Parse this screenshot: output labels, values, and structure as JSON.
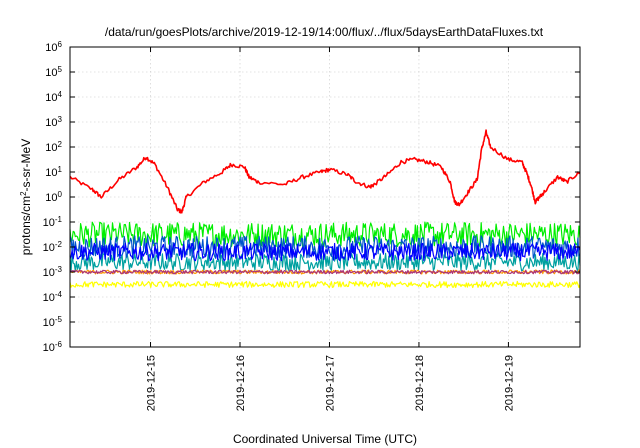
{
  "chart_data": {
    "type": "line",
    "title": "/data/run/goesPlots/archive/2019-12-19/14:00/flux/../flux/5daysEarthDataFluxes.txt",
    "xlabel": "Coordinated Universal Time (UTC)",
    "ylabel": {
      "base": "protons/cm",
      "sup": "2",
      "rest": "-s-sr-MeV"
    },
    "yscale": "log",
    "ylim_exp": [
      -6,
      6
    ],
    "y_ticks": [
      {
        "base": "10",
        "exp": "6"
      },
      {
        "base": "10",
        "exp": "5"
      },
      {
        "base": "10",
        "exp": "4"
      },
      {
        "base": "10",
        "exp": "3"
      },
      {
        "base": "10",
        "exp": "2"
      },
      {
        "base": "10",
        "exp": "1"
      },
      {
        "base": "10",
        "exp": "0"
      },
      {
        "base": "10",
        "exp": "-1"
      },
      {
        "base": "10",
        "exp": "-2"
      },
      {
        "base": "10",
        "exp": "-3"
      },
      {
        "base": "10",
        "exp": "-4"
      },
      {
        "base": "10",
        "exp": "-5"
      },
      {
        "base": "10",
        "exp": "-6"
      }
    ],
    "xlim_days": [
      0,
      5.7
    ],
    "x_ticks": [
      {
        "label": "2019-12-15",
        "day": 0.9
      },
      {
        "label": "2019-12-16",
        "day": 1.9
      },
      {
        "label": "2019-12-17",
        "day": 2.9
      },
      {
        "label": "2019-12-18",
        "day": 3.9
      },
      {
        "label": "2019-12-19",
        "day": 4.9
      }
    ],
    "grid": true,
    "series": [
      {
        "color": "#ff0000",
        "style": "smooth",
        "points": [
          [
            0,
            0.8
          ],
          [
            0.25,
            0.3
          ],
          [
            0.35,
            0.0
          ],
          [
            0.55,
            0.7
          ],
          [
            0.75,
            1.2
          ],
          [
            0.85,
            1.6
          ],
          [
            0.95,
            1.3
          ],
          [
            1.1,
            0.3
          ],
          [
            1.2,
            -0.5
          ],
          [
            1.25,
            -0.6
          ],
          [
            1.3,
            0.0
          ],
          [
            1.5,
            0.6
          ],
          [
            1.7,
            1.0
          ],
          [
            1.8,
            1.3
          ],
          [
            1.95,
            1.2
          ],
          [
            2.0,
            0.8
          ],
          [
            2.1,
            0.6
          ],
          [
            2.4,
            0.5
          ],
          [
            2.6,
            0.8
          ],
          [
            2.8,
            1.0
          ],
          [
            2.9,
            1.1
          ],
          [
            3.1,
            0.9
          ],
          [
            3.2,
            0.6
          ],
          [
            3.35,
            0.4
          ],
          [
            3.4,
            0.5
          ],
          [
            3.55,
            0.9
          ],
          [
            3.7,
            1.4
          ],
          [
            3.85,
            1.5
          ],
          [
            4.0,
            1.4
          ],
          [
            4.15,
            1.2
          ],
          [
            4.25,
            0.6
          ],
          [
            4.3,
            -0.2
          ],
          [
            4.35,
            -0.3
          ],
          [
            4.45,
            0.2
          ],
          [
            4.55,
            0.7
          ],
          [
            4.6,
            1.9
          ],
          [
            4.65,
            2.6
          ],
          [
            4.7,
            2.0
          ],
          [
            4.9,
            1.5
          ],
          [
            5.05,
            1.4
          ],
          [
            5.1,
            1.0
          ],
          [
            5.15,
            0.5
          ],
          [
            5.2,
            -0.2
          ],
          [
            5.25,
            0.0
          ],
          [
            5.3,
            0.2
          ],
          [
            5.45,
            0.8
          ],
          [
            5.55,
            0.6
          ],
          [
            5.7,
            1.0
          ]
        ]
      },
      {
        "color": "#00ee00",
        "style": "noisy",
        "center": -1.5,
        "spread": 0.5
      },
      {
        "color": "#00a0a0",
        "style": "noisy",
        "center": -2.6,
        "spread": 0.35
      },
      {
        "color": "#0055cc",
        "style": "noisy",
        "center": -2.0,
        "spread": 0.45
      },
      {
        "color": "#0000ff",
        "style": "noisy",
        "center": -2.2,
        "spread": 0.35
      },
      {
        "color": "#ffff00",
        "style": "noisy",
        "center": -3.5,
        "spread": 0.12
      },
      {
        "color": "#ff9900",
        "style": "noisy",
        "center": -3.0,
        "spread": 0.08
      },
      {
        "color": "#aa3377",
        "style": "noisy",
        "center": -3.0,
        "spread": 0.07
      }
    ]
  }
}
